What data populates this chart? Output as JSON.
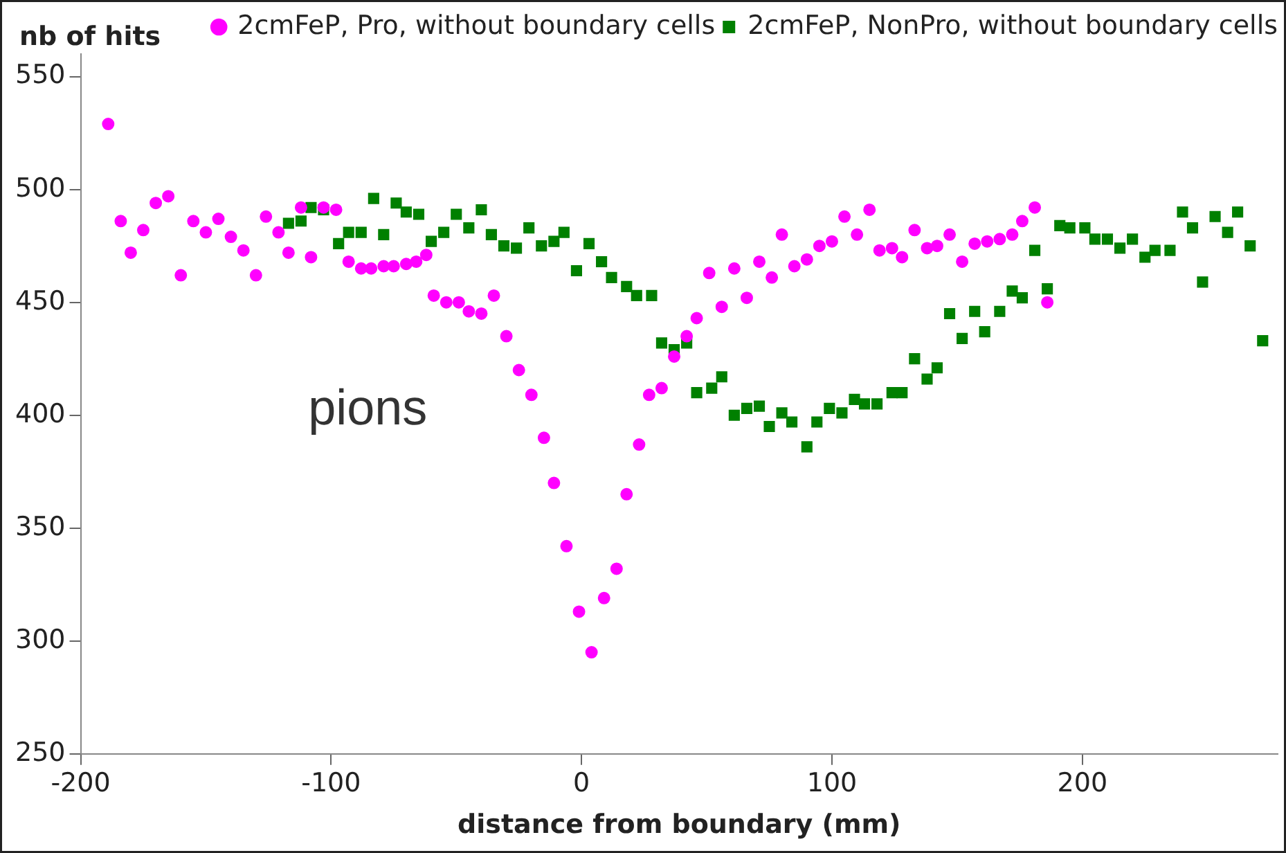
{
  "chart_data": {
    "type": "scatter",
    "xlabel": "distance from boundary (mm)",
    "ylabel": "nb of hits",
    "xlim": [
      -200,
      278
    ],
    "ylim": [
      250,
      560
    ],
    "xticks": [
      -200,
      -100,
      0,
      100,
      200
    ],
    "yticks": [
      250,
      300,
      350,
      400,
      450,
      500,
      550
    ],
    "grid": false,
    "legend": "top right",
    "annotations": [
      "pions"
    ],
    "series": [
      {
        "name": "2cmFeP, Pro, without boundary cells",
        "color": "#ff00ff",
        "marker": "circle",
        "x": [
          -189,
          -184,
          -180,
          -175,
          -170,
          -165,
          -160,
          -155,
          -150,
          -145,
          -140,
          -135,
          -130,
          -126,
          -121,
          -117,
          -112,
          -108,
          -103,
          -98,
          -93,
          -88,
          -84,
          -79,
          -75,
          -70,
          -66,
          -62,
          -59,
          -54,
          -49,
          -45,
          -40,
          -35,
          -30,
          -25,
          -20,
          -15,
          -11,
          -6,
          -1,
          4,
          9,
          14,
          18,
          23,
          27,
          32,
          37,
          42,
          46,
          51,
          56,
          61,
          66,
          71,
          76,
          80,
          85,
          90,
          95,
          100,
          105,
          110,
          115,
          119,
          124,
          128,
          133,
          138,
          142,
          147,
          152,
          157,
          162,
          167,
          172,
          176,
          181,
          186
        ],
        "values": [
          529,
          486,
          472,
          482,
          494,
          497,
          462,
          486,
          481,
          487,
          479,
          473,
          462,
          488,
          481,
          472,
          492,
          470,
          492,
          491,
          468,
          465,
          465,
          466,
          466,
          467,
          468,
          471,
          453,
          450,
          450,
          446,
          445,
          453,
          435,
          420,
          409,
          390,
          370,
          342,
          313,
          295,
          319,
          332,
          365,
          387,
          409,
          412,
          426,
          435,
          443,
          463,
          448,
          465,
          452,
          468,
          461,
          480,
          466,
          469,
          475,
          477,
          488,
          480,
          491,
          473,
          474,
          470,
          482,
          474,
          475,
          480,
          468,
          476,
          477,
          478,
          480,
          486,
          492,
          450
        ]
      },
      {
        "name": "2cmFeP, NonPro, without boundary cells",
        "color": "#008000",
        "marker": "square",
        "x": [
          -117,
          -112,
          -108,
          -103,
          -97,
          -93,
          -88,
          -83,
          -79,
          -74,
          -70,
          -65,
          -60,
          -55,
          -50,
          -45,
          -40,
          -36,
          -31,
          -26,
          -21,
          -16,
          -11,
          -7,
          -2,
          3,
          8,
          12,
          18,
          22,
          28,
          32,
          37,
          42,
          46,
          52,
          56,
          61,
          66,
          71,
          75,
          80,
          84,
          90,
          94,
          99,
          104,
          109,
          113,
          118,
          124,
          128,
          133,
          138,
          142,
          147,
          152,
          157,
          161,
          167,
          172,
          176,
          181,
          186,
          191,
          195,
          201,
          205,
          210,
          215,
          220,
          225,
          229,
          235,
          240,
          244,
          248,
          253,
          258,
          262,
          267,
          272
        ],
        "values": [
          485,
          486,
          492,
          491,
          476,
          481,
          481,
          496,
          480,
          494,
          490,
          489,
          477,
          481,
          489,
          483,
          491,
          480,
          475,
          474,
          483,
          475,
          477,
          481,
          464,
          476,
          468,
          461,
          457,
          453,
          453,
          432,
          429,
          432,
          410,
          412,
          417,
          400,
          403,
          404,
          395,
          401,
          397,
          386,
          397,
          403,
          401,
          407,
          405,
          405,
          410,
          410,
          425,
          416,
          421,
          445,
          434,
          446,
          437,
          446,
          455,
          452,
          473,
          456,
          484,
          483,
          483,
          478,
          478,
          474,
          478,
          470,
          473,
          473,
          490,
          483,
          459,
          488,
          481,
          490,
          475,
          433
        ]
      }
    ]
  }
}
